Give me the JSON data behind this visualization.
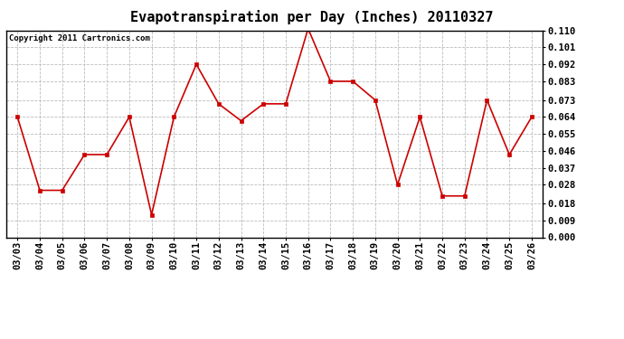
{
  "title": "Evapotranspiration per Day (Inches) 20110327",
  "copyright_text": "Copyright 2011 Cartronics.com",
  "dates": [
    "03/03",
    "03/04",
    "03/05",
    "03/06",
    "03/07",
    "03/08",
    "03/09",
    "03/10",
    "03/11",
    "03/12",
    "03/13",
    "03/14",
    "03/15",
    "03/16",
    "03/17",
    "03/18",
    "03/19",
    "03/20",
    "03/21",
    "03/22",
    "03/23",
    "03/24",
    "03/25",
    "03/26"
  ],
  "values": [
    0.064,
    0.025,
    0.025,
    0.044,
    0.044,
    0.064,
    0.012,
    0.064,
    0.092,
    0.071,
    0.062,
    0.071,
    0.071,
    0.111,
    0.083,
    0.083,
    0.073,
    0.028,
    0.064,
    0.022,
    0.022,
    0.073,
    0.044,
    0.064
  ],
  "ylim": [
    0.0,
    0.11
  ],
  "yticks": [
    0.0,
    0.009,
    0.018,
    0.028,
    0.037,
    0.046,
    0.055,
    0.064,
    0.073,
    0.083,
    0.092,
    0.101,
    0.11
  ],
  "line_color": "#cc0000",
  "marker": "s",
  "marker_size": 2.5,
  "marker_color": "#cc0000",
  "grid_color": "#bbbbbb",
  "grid_style": "--",
  "bg_color": "#ffffff",
  "title_fontsize": 11,
  "copyright_fontsize": 6.5,
  "tick_fontsize": 7.5,
  "border_color": "#000000"
}
